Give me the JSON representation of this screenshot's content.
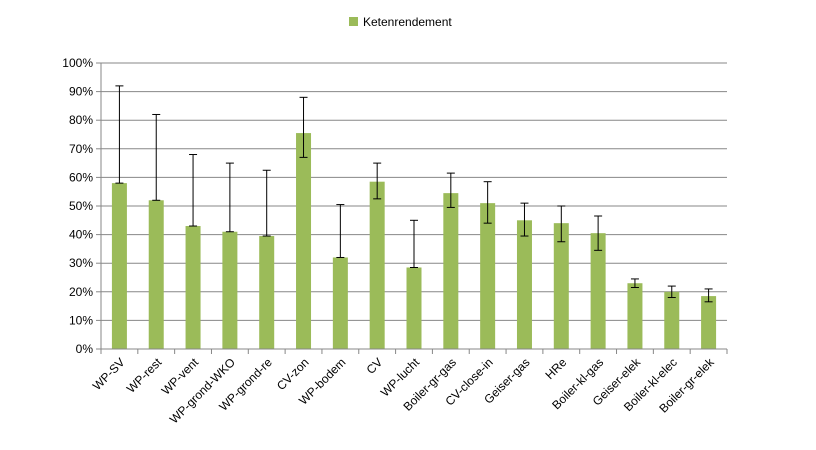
{
  "chart_data": {
    "type": "bar",
    "categories": [
      "WP-SV",
      "WP-rest",
      "WP-vent",
      "WP-grond-WKO",
      "WP-grond-re",
      "CV-zon",
      "WP-bodem",
      "CV",
      "WP-lucht",
      "Boiler-gr-gas",
      "CV-close-in",
      "Geiser-gas",
      "HRe",
      "Boiler-kl-gas",
      "Geiser-elek",
      "Boiler-kl-elec",
      "Boiler-gr-elek"
    ],
    "series": [
      {
        "name": "Ketenrendement",
        "values": [
          58,
          52,
          43,
          41,
          39.5,
          75.5,
          32,
          58.5,
          28.5,
          54.5,
          51,
          45,
          44,
          40.5,
          23,
          20,
          18.5
        ],
        "error_low": [
          58,
          52,
          43,
          41,
          39.5,
          67,
          32,
          52.5,
          28.5,
          49.5,
          44,
          39.5,
          37.5,
          34.5,
          21.5,
          18,
          16.5
        ],
        "error_high": [
          92,
          82,
          68,
          65,
          62.5,
          88,
          50.5,
          65,
          45,
          61.5,
          58.5,
          51,
          50,
          46.5,
          24.5,
          22,
          21
        ],
        "color": "#9bbb59"
      }
    ],
    "yticks": [
      "0%",
      "10%",
      "20%",
      "30%",
      "40%",
      "50%",
      "60%",
      "70%",
      "80%",
      "90%",
      "100%"
    ],
    "ylim": [
      0,
      100
    ],
    "grid": true,
    "legend": "top-center"
  }
}
